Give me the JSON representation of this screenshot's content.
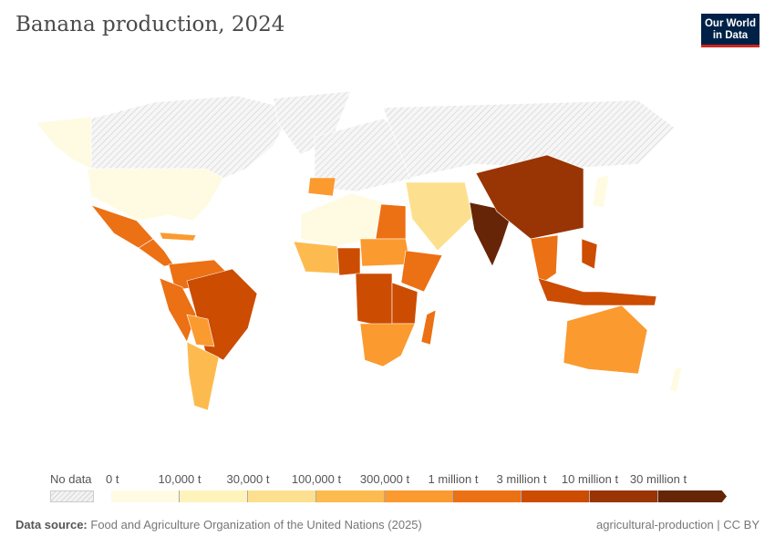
{
  "title": "Banana production, 2024",
  "logo": {
    "line1": "Our World",
    "line2": "in Data"
  },
  "legend": {
    "no_data_label": "No data",
    "bins": [
      {
        "label": "0 t",
        "color": "#fefbe2"
      },
      {
        "label": "10,000 t",
        "color": "#fef3bb"
      },
      {
        "label": "30,000 t",
        "color": "#fde08f"
      },
      {
        "label": "100,000 t",
        "color": "#fdbb4f"
      },
      {
        "label": "300,000 t",
        "color": "#fb9a2f"
      },
      {
        "label": "1 million t",
        "color": "#ec7014"
      },
      {
        "label": "3 million t",
        "color": "#cc4c02"
      },
      {
        "label": "10 million t",
        "color": "#993404"
      },
      {
        "label": "30 million t",
        "color": "#662506"
      }
    ]
  },
  "footer": {
    "source_label": "Data source:",
    "source_text": "Food and Agriculture Organization of the United Nations (2025)",
    "right": "agricultural-production | CC BY"
  }
}
